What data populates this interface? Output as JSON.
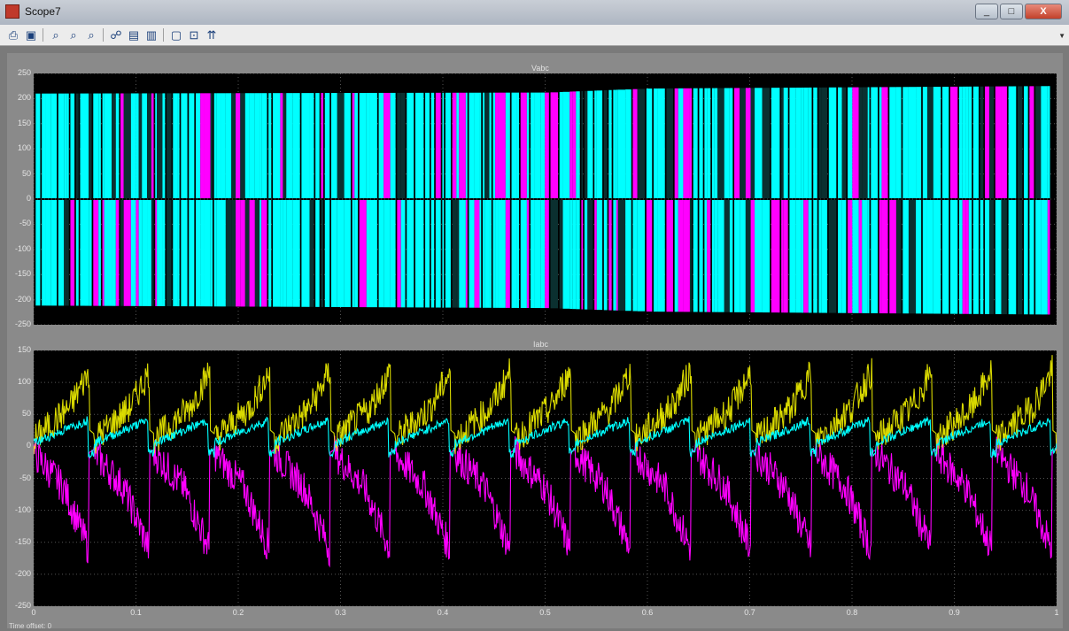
{
  "window": {
    "title": "Scope7",
    "controls": [
      "_",
      "□",
      "X"
    ]
  },
  "toolbar": {
    "icons": [
      "print-icon",
      "parameters-icon",
      "zoom-icon",
      "zoom-x-icon",
      "zoom-y-icon",
      "autoscale-icon",
      "save-axes-icon",
      "restore-axes-icon",
      "floating-scope-icon",
      "lock-axes-icon",
      "signal-selection-icon"
    ]
  },
  "colors": {
    "axes_bg": "#000000",
    "frame": "#8a8a8a",
    "cyan": "#00ffff",
    "magenta": "#ff00ff",
    "yellow": "#ffff00"
  },
  "plot1": {
    "title": "Vabc",
    "yticks": [
      "250",
      "200",
      "150",
      "100",
      "50",
      "0",
      "-50",
      "-100",
      "-150",
      "-200",
      "-250"
    ]
  },
  "plot2": {
    "title": "Iabc",
    "yticks": [
      "150",
      "100",
      "50",
      "0",
      "-50",
      "-100",
      "-150",
      "-200",
      "-250"
    ]
  },
  "xticks": [
    "0",
    "0.1",
    "0.2",
    "0.3",
    "0.4",
    "0.5",
    "0.6",
    "0.7",
    "0.8",
    "0.9",
    "1"
  ],
  "status": "Time offset: 0",
  "chart_data": [
    {
      "type": "line",
      "title": "Vabc",
      "xlim": [
        0,
        1
      ],
      "ylim": [
        -250,
        250
      ],
      "grid": true,
      "series_colors": [
        "#00ffff",
        "#ff00ff",
        "#ffff00"
      ],
      "envelope": {
        "x": [
          0,
          0.5,
          0.6,
          1
        ],
        "upper": [
          210,
          212,
          220,
          225
        ],
        "lower": [
          -210,
          -215,
          -222,
          -228
        ]
      }
    },
    {
      "type": "line",
      "title": "Iabc",
      "xlim": [
        0,
        1
      ],
      "ylim": [
        -250,
        150
      ],
      "grid": true,
      "cycles": 17,
      "series": [
        {
          "color": "#ffff00",
          "range": [
            0,
            145
          ]
        },
        {
          "color": "#00ffff",
          "range": [
            -20,
            55
          ]
        },
        {
          "color": "#ff00ff",
          "range": [
            -210,
            0
          ]
        }
      ]
    }
  ]
}
